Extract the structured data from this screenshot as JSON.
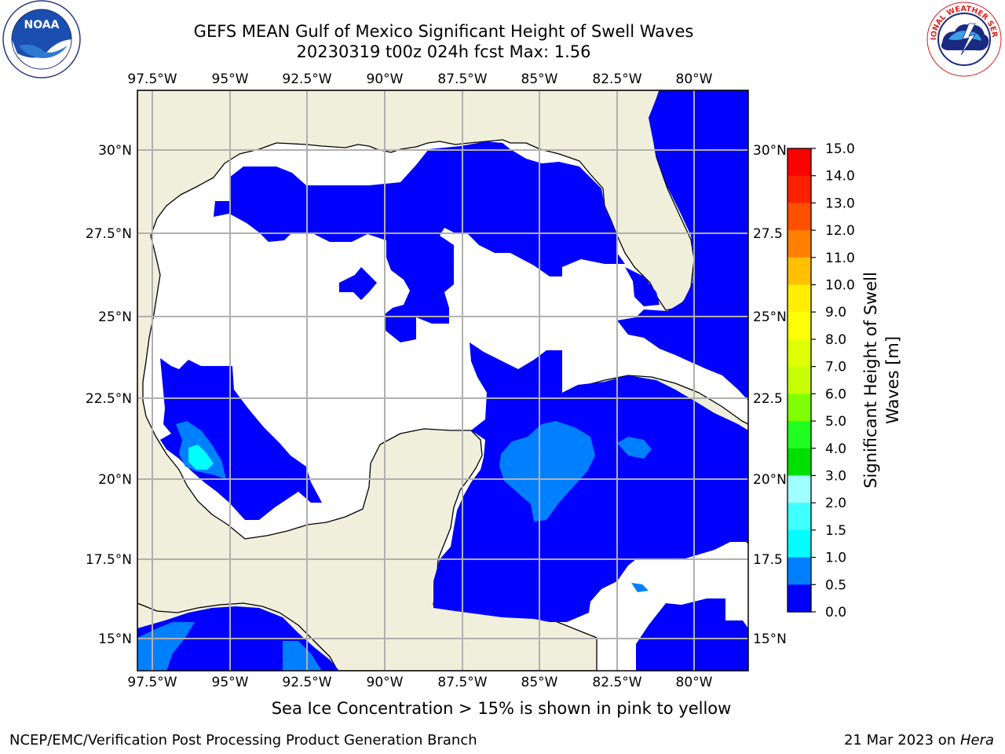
{
  "title": {
    "line1": "GEFS MEAN Gulf of Mexico Significant Height of Swell Waves",
    "line2": "20230319 t00z 024h fcst   Max: 1.56"
  },
  "logos": {
    "left": {
      "icon": "noaa-logo",
      "text": "NOAA",
      "ring_text": "NATIONAL OCEANIC AND ATMOSPHERIC ADMINISTRATION · U.S. DEPARTMENT OF COMMERCE"
    },
    "right": {
      "icon": "nws-logo",
      "ring_text": "NATIONAL WEATHER SERVICE"
    }
  },
  "map": {
    "lon_labels": [
      "97.5°W",
      "95°W",
      "92.5°W",
      "90°W",
      "87.5°W",
      "85°W",
      "82.5°W",
      "80°W"
    ],
    "lat_labels_left": [
      "30°N",
      "27.5°N",
      "25°N",
      "22.5°N",
      "20°N",
      "17.5°N",
      "15°N"
    ],
    "lat_labels_right": [
      "30°N",
      "27.5",
      "25°N",
      "22.5",
      "20°N",
      "17.5",
      "15°N"
    ],
    "colors": {
      "land": "#efefdc",
      "wave_0_05": "#0000ff",
      "wave_05_10": "#0080ff",
      "wave_15_20": "#00ffff",
      "grid": "#b0b0b0"
    }
  },
  "colorbar": {
    "label": "Significant Height of Swell Waves [m]",
    "label_line1": "Significant Height of Swell",
    "label_line2": "Waves [m]",
    "ticks": [
      "15.0",
      "14.0",
      "13.0",
      "12.0",
      "11.0",
      "10.0",
      "9.0",
      "8.0",
      "7.0",
      "6.0",
      "5.0",
      "4.0",
      "3.0",
      "2.0",
      "1.5",
      "1.0",
      "0.5",
      "0.0"
    ],
    "colors": [
      "#ff0000",
      "#ff2000",
      "#ff5000",
      "#ff8000",
      "#ffa000",
      "#ffc000",
      "#ffee00",
      "#ffff00",
      "#e0ff00",
      "#c8ff00",
      "#80ff00",
      "#20ff20",
      "#00e000",
      "#50ff80",
      "#a0ffff",
      "#40ffff",
      "#00ffff",
      "#0080ff",
      "#0000ff"
    ]
  },
  "notes": {
    "sea_ice": "Sea Ice Concentration > 15% is shown in pink to yellow",
    "footer_left": "NCEP/EMC/Verification Post Processing Product Generation Branch",
    "footer_date": "21 Mar 2023 on ",
    "footer_host": "Hera"
  }
}
